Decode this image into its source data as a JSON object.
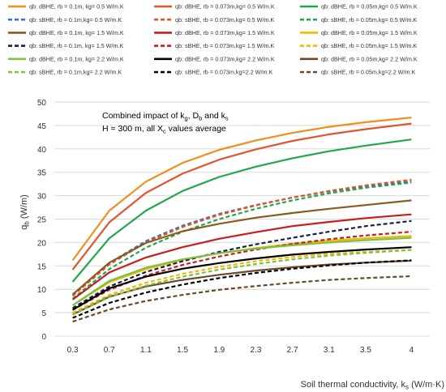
{
  "chart_data": {
    "type": "line",
    "xlabel": "Soil thermal conductivity, k",
    "xlabel_sub": "s",
    "xlabel_unit": " (W/m·K)",
    "ylabel": "q",
    "ylabel_sub": "b",
    "ylabel_unit": " (W/m)",
    "annotation_line1": "Combined impact of k",
    "annotation_line1_sub1": "g",
    "annotation_line1_mid1": ", D",
    "annotation_line1_sub2": "b",
    "annotation_line1_mid2": " and k",
    "annotation_line1_sub3": "s",
    "annotation_line2": "H = 300 m, all X",
    "annotation_line2_sub": "c",
    "annotation_line2_end": " values average",
    "ylim": [
      0,
      50
    ],
    "yticks": [
      "0",
      "5",
      "10",
      "15",
      "20",
      "25",
      "30",
      "35",
      "40",
      "45",
      "50"
    ],
    "x": [
      0.3,
      0.7,
      1.1,
      1.5,
      1.9,
      2.3,
      2.7,
      3.1,
      3.5,
      4.0
    ],
    "xtick_labels": [
      "0.3",
      "0.7",
      "1.1",
      "1.5",
      "1.9",
      "2.3",
      "2.7",
      "3.1",
      "3.5",
      "4"
    ],
    "grid": true,
    "legend_position": "top",
    "series": [
      {
        "name": "qb: dBHE, rb = 0.1m, kg= 0.5 W/m.K",
        "color": "#F28E1C",
        "dash": false,
        "values": [
          16.2,
          26.8,
          33.0,
          37.0,
          39.8,
          41.8,
          43.4,
          44.7,
          45.7,
          46.7
        ]
      },
      {
        "name": "qb: dBHE, rb = 0.073m,kg= 0.5 W/m.K",
        "color": "#E0562A",
        "dash": false,
        "values": [
          14.2,
          24.3,
          30.6,
          34.7,
          37.7,
          39.9,
          41.7,
          43.1,
          44.2,
          45.4
        ]
      },
      {
        "name": "qb: dBHE, rb = 0.05m,kg= 0.5 W/m.K",
        "color": "#1FA84C",
        "dash": false,
        "values": [
          11.6,
          20.9,
          26.8,
          31.0,
          34.0,
          36.2,
          38.0,
          39.5,
          40.7,
          42.0
        ]
      },
      {
        "name": "qb: sBHE, rb = 0.1m,kg= 0.5 W/m.K",
        "color": "#3A6FC4",
        "dash": true,
        "values": [
          8.8,
          15.6,
          20.3,
          23.6,
          26.1,
          28.0,
          29.6,
          30.9,
          32.0,
          33.0
        ]
      },
      {
        "name": "qb: sBHE, rb = 0.073m,kg= 0.5 W/m.K",
        "color": "#E0562A",
        "dash": true,
        "values": [
          8.6,
          15.3,
          20.0,
          23.3,
          25.9,
          27.9,
          29.6,
          31.0,
          32.2,
          33.4
        ]
      },
      {
        "name": "qb: sBHE, rb = 0.05m,kg= 0.5 W/m.K",
        "color": "#1FA84C",
        "dash": true,
        "values": [
          8.0,
          14.3,
          18.9,
          22.3,
          25.0,
          27.2,
          29.0,
          30.5,
          31.7,
          32.8
        ]
      },
      {
        "name": "qb: dBHE, rb = 0.1m, kg= 1.5 W/m.K",
        "color": "#8B5A1E",
        "dash": false,
        "values": [
          8.9,
          15.7,
          19.9,
          22.4,
          24.0,
          25.3,
          26.3,
          27.2,
          28.0,
          29.0
        ]
      },
      {
        "name": "qb: dBHE, rb = 0.073m,kg= 1.5 W/m.K",
        "color": "#C81D1D",
        "dash": false,
        "values": [
          7.8,
          13.6,
          16.8,
          19.0,
          20.8,
          22.2,
          23.5,
          24.4,
          25.2,
          26.0
        ]
      },
      {
        "name": "qb: dBHE, rb = 0.05m,kg= 1.5 W/m.K",
        "color": "#F5B800",
        "dash": false,
        "values": [
          6.6,
          11.5,
          14.3,
          16.3,
          17.7,
          18.8,
          19.7,
          20.4,
          20.9,
          21.4
        ]
      },
      {
        "name": "qb: sBHE, rb = 0.1m, kg= 1.5 W/m.K",
        "color": "#1A1F4A",
        "dash": true,
        "values": [
          6.0,
          10.6,
          13.7,
          16.0,
          18.0,
          19.6,
          21.0,
          22.3,
          23.5,
          24.6
        ]
      },
      {
        "name": "qb: sBHE, rb = 0.073m,kg= 1.5 W/m.K",
        "color": "#C81D1D",
        "dash": true,
        "values": [
          5.6,
          9.9,
          12.9,
          15.2,
          17.0,
          18.5,
          19.7,
          20.7,
          21.5,
          22.3
        ]
      },
      {
        "name": "qb: sBHE, rb = 0.05m,kg= 1.5 W/m.K",
        "color": "#F5B800",
        "dash": true,
        "values": [
          5.0,
          8.8,
          11.4,
          13.3,
          14.8,
          16.0,
          16.9,
          17.6,
          18.0,
          18.4
        ]
      },
      {
        "name": "qb: dBHE, rb = 0.1m, kg= 2.2 W/m.K",
        "color": "#7CC242",
        "dash": false,
        "values": [
          6.6,
          11.8,
          14.6,
          16.4,
          17.7,
          18.7,
          19.4,
          20.0,
          20.5,
          21.0
        ]
      },
      {
        "name": "qb: dBHE, rb = 0.073m,kg= 2.2 W/m.K",
        "color": "#000000",
        "dash": false,
        "values": [
          5.6,
          10.2,
          12.7,
          14.4,
          15.6,
          16.6,
          17.4,
          18.0,
          18.5,
          19.0
        ]
      },
      {
        "name": "qb: dBHE, rb = 0.05m,kg= 2.2 W/m.K",
        "color": "#6B4A2A",
        "dash": false,
        "values": [
          4.6,
          8.4,
          10.6,
          12.0,
          13.1,
          14.0,
          14.7,
          15.3,
          15.7,
          16.1
        ]
      },
      {
        "name": "qb: sBHE, rb = 0.1m,kg= 2.2 W/m.K",
        "color": "#7CC242",
        "dash": true,
        "values": [
          4.6,
          8.3,
          10.8,
          12.7,
          14.2,
          15.4,
          16.4,
          17.2,
          17.8,
          18.4
        ]
      },
      {
        "name": "qb: sBHE, rb = 0.073m,kg=2.2 W/m.K",
        "color": "#000000",
        "dash": true,
        "values": [
          3.9,
          7.1,
          9.3,
          11.0,
          12.4,
          13.5,
          14.4,
          15.1,
          15.7,
          16.2
        ]
      },
      {
        "name": "qb: sBHE, rb = 0.05m,kg=2.2 W/m.K",
        "color": "#6B4A2A",
        "dash": true,
        "values": [
          3.1,
          5.7,
          7.5,
          8.8,
          9.9,
          10.7,
          11.4,
          12.0,
          12.4,
          12.8
        ]
      }
    ]
  }
}
